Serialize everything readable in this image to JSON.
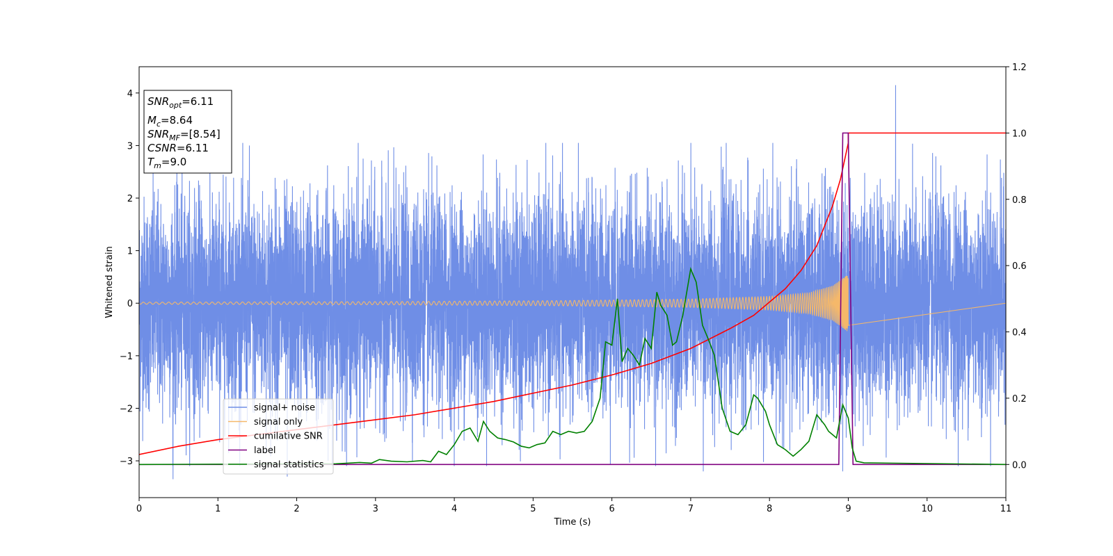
{
  "chart_data": {
    "type": "line",
    "xlabel": "Time (s)",
    "ylabel": "Whitened strain",
    "xlim": [
      0,
      11
    ],
    "ylim": [
      -3.7,
      4.5
    ],
    "y2lim": [
      -0.1,
      1.2
    ],
    "x_ticks": [
      0,
      1,
      2,
      3,
      4,
      5,
      6,
      7,
      8,
      9,
      10,
      11
    ],
    "y_ticks": [
      -3,
      -2,
      -1,
      0,
      1,
      2,
      3,
      4
    ],
    "y2_ticks": [
      "0.0",
      "0.2",
      "0.4",
      "0.6",
      "0.8",
      "1.0",
      "1.2"
    ],
    "grid": false,
    "legend_position": "lower-left",
    "info_box": [
      {
        "main": "SNR",
        "sub": "opt",
        "value": "=6.11"
      },
      {
        "main": "M",
        "sub": "c",
        "value": "=8.64"
      },
      {
        "main": "SNR",
        "sub": "MF",
        "value": "=[8.54]"
      },
      {
        "main": "CSNR",
        "sub": "",
        "value": "=6.11"
      },
      {
        "main": "T",
        "sub": "m",
        "value": "=9.0"
      }
    ],
    "series": [
      {
        "name": "signal+ noise",
        "axis": "left",
        "color": "#6f8ee6",
        "description_type": "noise",
        "t_range": [
          0,
          11
        ],
        "sigma": 1.0,
        "spikes": [
          [
            9.6,
            4.15
          ],
          [
            0.43,
            -3.35
          ],
          [
            7.16,
            -3.2
          ],
          [
            8.93,
            -3.2
          ],
          [
            1.88,
            -3.3
          ],
          [
            1.4,
            3.0
          ],
          [
            2.78,
            3.05
          ]
        ]
      },
      {
        "name": "signal only",
        "axis": "left",
        "color": "#f5b86a",
        "description_type": "chirp",
        "t_range": [
          0,
          9.0
        ],
        "t_merger": 9.0,
        "envelope_points": [
          [
            0,
            0.02
          ],
          [
            3,
            0.03
          ],
          [
            5,
            0.045
          ],
          [
            6,
            0.06
          ],
          [
            7,
            0.08
          ],
          [
            8,
            0.13
          ],
          [
            8.5,
            0.2
          ],
          [
            8.8,
            0.33
          ],
          [
            9.0,
            0.55
          ]
        ]
      },
      {
        "name": "cumilative SNR",
        "axis": "right",
        "color": "#ff0000",
        "x": [
          0,
          0.5,
          1,
          1.5,
          2,
          2.5,
          3,
          3.5,
          4,
          4.5,
          5,
          5.5,
          6,
          6.5,
          7,
          7.5,
          7.8,
          8,
          8.2,
          8.4,
          8.6,
          8.8,
          8.9,
          9.0,
          9.0,
          11
        ],
        "y": [
          0.03,
          0.055,
          0.075,
          0.09,
          0.105,
          0.12,
          0.135,
          0.15,
          0.17,
          0.19,
          0.215,
          0.24,
          0.27,
          0.305,
          0.35,
          0.41,
          0.45,
          0.49,
          0.53,
          0.585,
          0.66,
          0.78,
          0.86,
          0.97,
          1.0,
          1.0
        ]
      },
      {
        "name": "label",
        "axis": "right",
        "color": "#800080",
        "x": [
          0,
          8.88,
          8.93,
          9.0,
          9.06,
          11
        ],
        "y": [
          0,
          0,
          1.0,
          1.0,
          0,
          0
        ]
      },
      {
        "name": "signal statistics",
        "axis": "right",
        "color": "#008000",
        "x": [
          0,
          2.5,
          2.8,
          2.95,
          3.05,
          3.2,
          3.4,
          3.6,
          3.7,
          3.8,
          3.9,
          4.0,
          4.1,
          4.2,
          4.3,
          4.37,
          4.45,
          4.55,
          4.65,
          4.75,
          4.85,
          4.95,
          5.05,
          5.15,
          5.25,
          5.35,
          5.45,
          5.55,
          5.65,
          5.75,
          5.85,
          5.92,
          6.0,
          6.07,
          6.13,
          6.2,
          6.27,
          6.35,
          6.42,
          6.5,
          6.57,
          6.62,
          6.7,
          6.77,
          6.82,
          6.9,
          7.0,
          7.07,
          7.15,
          7.22,
          7.3,
          7.4,
          7.5,
          7.6,
          7.7,
          7.8,
          7.85,
          7.95,
          8.0,
          8.1,
          8.2,
          8.3,
          8.4,
          8.5,
          8.6,
          8.7,
          8.75,
          8.85,
          8.93,
          9.0,
          9.05,
          9.1,
          9.2,
          11
        ],
        "y": [
          0,
          0.002,
          0.006,
          0.004,
          0.015,
          0.01,
          0.008,
          0.012,
          0.008,
          0.04,
          0.03,
          0.06,
          0.1,
          0.11,
          0.07,
          0.13,
          0.1,
          0.08,
          0.075,
          0.068,
          0.055,
          0.05,
          0.06,
          0.065,
          0.1,
          0.09,
          0.1,
          0.095,
          0.1,
          0.13,
          0.2,
          0.37,
          0.36,
          0.5,
          0.31,
          0.35,
          0.33,
          0.3,
          0.38,
          0.35,
          0.52,
          0.48,
          0.45,
          0.36,
          0.37,
          0.45,
          0.59,
          0.55,
          0.42,
          0.38,
          0.33,
          0.17,
          0.1,
          0.09,
          0.12,
          0.21,
          0.2,
          0.16,
          0.12,
          0.06,
          0.045,
          0.025,
          0.045,
          0.07,
          0.15,
          0.12,
          0.1,
          0.08,
          0.18,
          0.14,
          0.05,
          0.01,
          0.005,
          0
        ]
      }
    ]
  }
}
